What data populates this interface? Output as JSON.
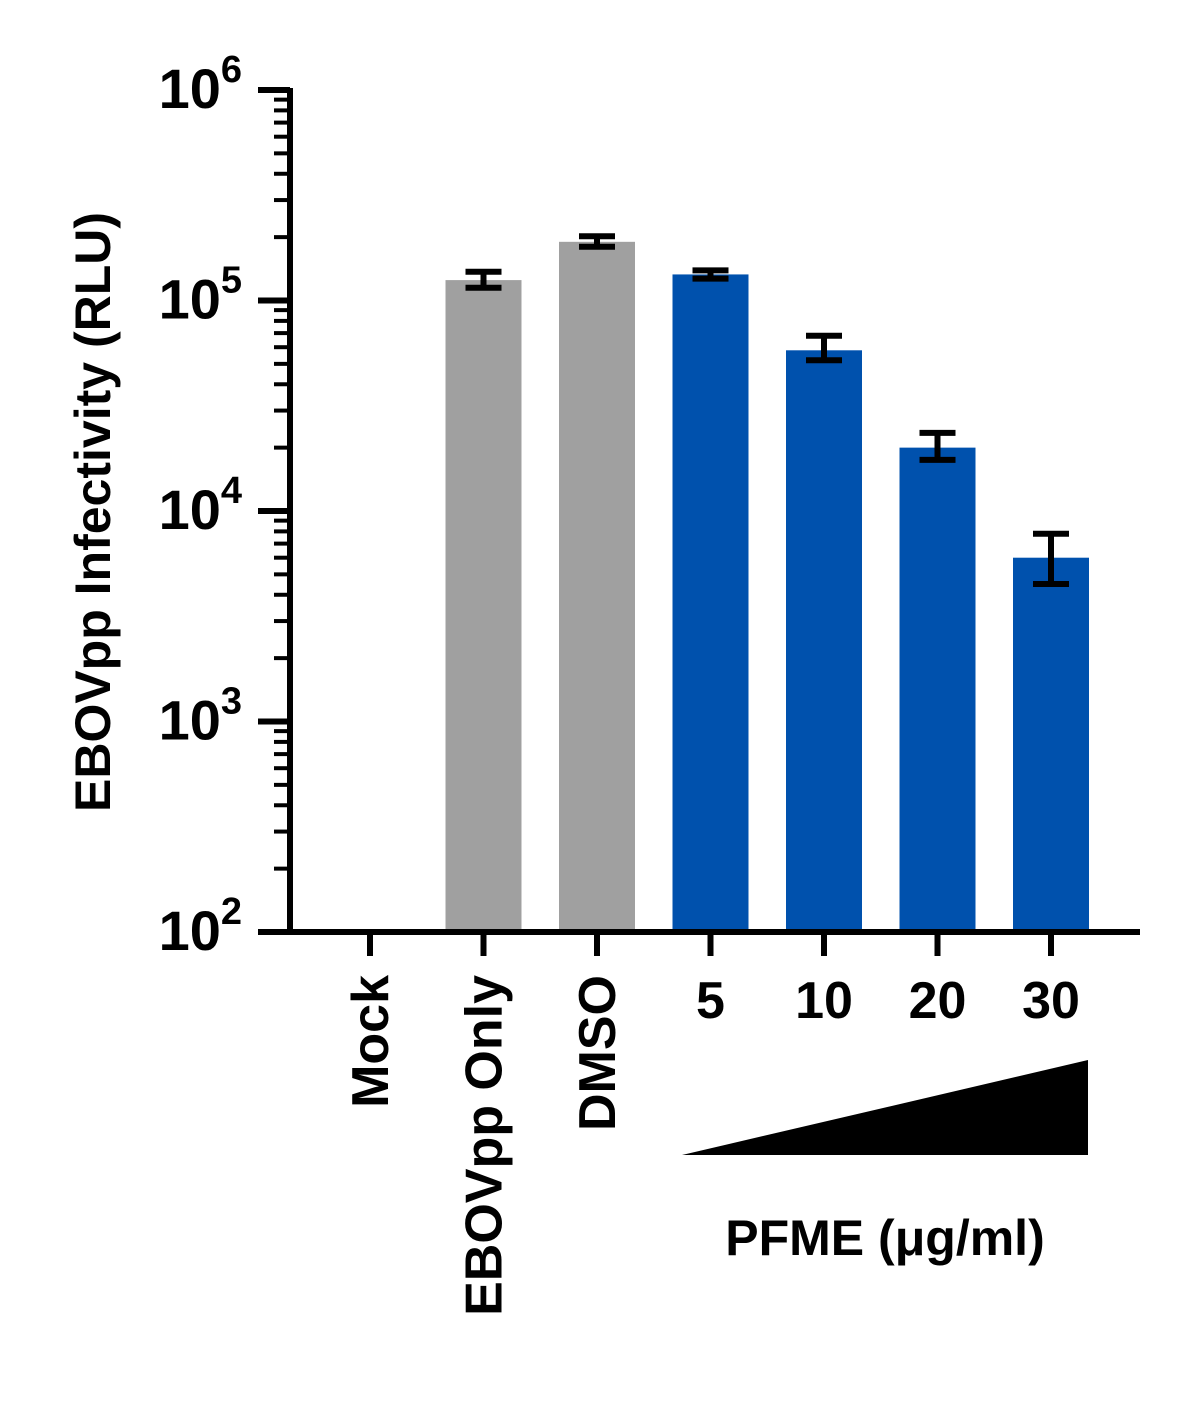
{
  "chart_data": {
    "type": "bar",
    "ylabel": "EBOVpp Infectivity (RLU)",
    "yscale": "log",
    "ylim": [
      100,
      1000000
    ],
    "yticks": [
      {
        "value": 100,
        "base": "10",
        "exp": "2"
      },
      {
        "value": 1000,
        "base": "10",
        "exp": "3"
      },
      {
        "value": 10000,
        "base": "10",
        "exp": "4"
      },
      {
        "value": 100000,
        "base": "10",
        "exp": "5"
      },
      {
        "value": 1000000,
        "base": "10",
        "exp": "6"
      }
    ],
    "categories": [
      "Mock",
      "EBOVpp Only",
      "DMSO",
      "5",
      "10",
      "20",
      "30"
    ],
    "values": [
      null,
      125000,
      190000,
      133000,
      58000,
      20000,
      6000
    ],
    "error_low": [
      null,
      115000,
      180000,
      127000,
      52000,
      17500,
      4500
    ],
    "error_high": [
      null,
      137000,
      202000,
      139000,
      68000,
      23500,
      7800
    ],
    "bar_colors": [
      "#a0a0a0",
      "#a0a0a0",
      "#a0a0a0",
      "#0051ad",
      "#0051ad",
      "#0051ad",
      "#0051ad"
    ],
    "gradient_label": "PFME (μg/ml)"
  }
}
